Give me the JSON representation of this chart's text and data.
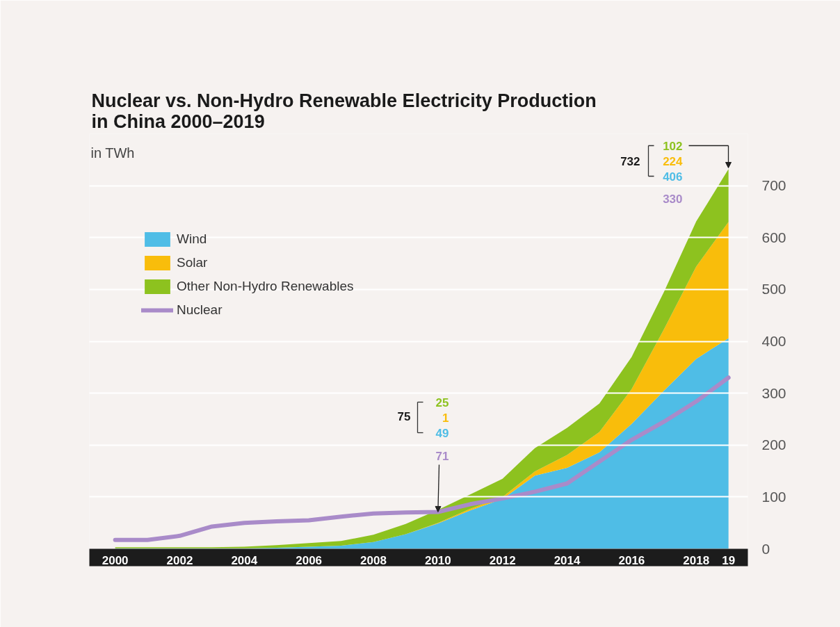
{
  "chart_data": {
    "type": "area",
    "title": "Nuclear vs. Non-Hydro Renewable Electricity Production\nin China 2000–2019",
    "subtitle": "in TWh",
    "x": [
      2000,
      2001,
      2002,
      2003,
      2004,
      2005,
      2006,
      2007,
      2008,
      2009,
      2010,
      2011,
      2012,
      2013,
      2014,
      2015,
      2016,
      2017,
      2018,
      2019
    ],
    "stacked": true,
    "series": [
      {
        "name": "Wind",
        "color": "#4fbde6",
        "values": [
          1,
          1,
          1,
          1,
          1,
          2,
          4,
          6,
          13,
          28,
          49,
          74,
          96,
          141,
          156,
          186,
          241,
          305,
          366,
          406
        ]
      },
      {
        "name": "Solar",
        "color": "#f9bd0b",
        "values": [
          0,
          0,
          0,
          0,
          0,
          0,
          0,
          0,
          0,
          0,
          1,
          3,
          4,
          8,
          25,
          39,
          67,
          118,
          178,
          224
        ]
      },
      {
        "name": "Other Non-Hydro Renewables",
        "color": "#8dc21f",
        "values": [
          2,
          2,
          2,
          2,
          3,
          5,
          7,
          9,
          14,
          20,
          25,
          28,
          35,
          45,
          52,
          55,
          62,
          72,
          87,
          102
        ]
      },
      {
        "name": "Nuclear",
        "type": "line",
        "color": "#a98bc9",
        "values": [
          17,
          17,
          25,
          43,
          50,
          53,
          55,
          62,
          68,
          70,
          71,
          86,
          97,
          110,
          126,
          168,
          210,
          245,
          284,
          330
        ]
      }
    ],
    "annotations": [
      "75",
      "25",
      "1",
      "49",
      {
        "text": "71",
        "x": 2010,
        "y": 71
      },
      "732",
      "102",
      "224",
      "406",
      "330"
    ],
    "xlim": [
      1999.2,
      2019.6
    ],
    "ylim": [
      0,
      800
    ],
    "xticks": [
      2000,
      2002,
      2004,
      2006,
      2008,
      2010,
      2012,
      2014,
      2016,
      2018,
      {
        "value": 2019,
        "label": "19"
      }
    ],
    "yticks": [
      0,
      100,
      200,
      300,
      400,
      500,
      600,
      700
    ],
    "grid": "y",
    "legend": "top left"
  }
}
